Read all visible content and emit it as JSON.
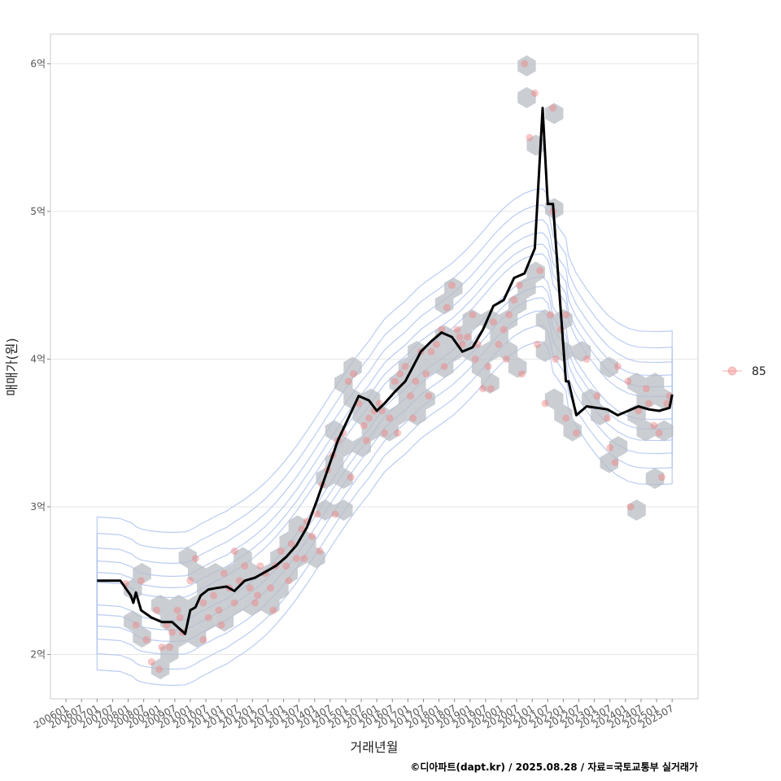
{
  "chart_data": {
    "type": "scatter",
    "xlabel": "거래년월",
    "ylabel": "매매가(원)",
    "caption": "©디아파트(dapt.kr) / 2025.08.28 / 자료=국토교통부 실거래가",
    "xlim": [
      "2005-07",
      "2026-05"
    ],
    "ylim": [
      1.7,
      6.2
    ],
    "y_ticks": [
      {
        "value": 2,
        "label": "2억"
      },
      {
        "value": 3,
        "label": "3억"
      },
      {
        "value": 4,
        "label": "4억"
      },
      {
        "value": 5,
        "label": "5억"
      },
      {
        "value": 6,
        "label": "6억"
      }
    ],
    "x_ticks": [
      "200601",
      "200607",
      "200701",
      "200707",
      "200801",
      "200807",
      "200901",
      "200907",
      "201001",
      "201007",
      "201101",
      "201107",
      "201201",
      "201207",
      "201301",
      "201307",
      "201401",
      "201407",
      "201501",
      "201507",
      "201601",
      "201607",
      "201701",
      "201707",
      "201801",
      "201807",
      "201901",
      "201907",
      "202001",
      "202007",
      "202101",
      "202107",
      "202201",
      "202207",
      "202301",
      "202307",
      "202401",
      "202407",
      "202501",
      "202507"
    ],
    "legend": {
      "position": "right",
      "entries": [
        "85"
      ]
    },
    "colors": {
      "points": "#f08080",
      "trend": "#000000",
      "contour": "#aabfef",
      "hexbin": "#b8bec4",
      "grid": "#e6e6e6"
    },
    "series": [
      {
        "name": "85",
        "kind": "points",
        "x": [
          "2007-12",
          "2008-06",
          "2008-04",
          "2008-08",
          "2008-10",
          "2008-12",
          "2009-02",
          "2009-04",
          "2009-06",
          "2009-08",
          "2009-10",
          "2009-01",
          "2009-05",
          "2009-09",
          "2010-01",
          "2010-03",
          "2010-06",
          "2010-08",
          "2010-10",
          "2010-12",
          "2011-02",
          "2011-04",
          "2011-06",
          "2011-08",
          "2011-10",
          "2011-12",
          "2012-02",
          "2012-04",
          "2012-06",
          "2012-08",
          "2012-10",
          "2012-12",
          "2013-02",
          "2013-04",
          "2013-06",
          "2013-08",
          "2013-10",
          "2013-12",
          "2014-02",
          "2014-04",
          "2014-06",
          "2014-08",
          "2014-10",
          "2014-12",
          "2015-02",
          "2015-04",
          "2015-06",
          "2015-08",
          "2015-10",
          "2015-12",
          "2016-02",
          "2016-04",
          "2016-06",
          "2016-08",
          "2016-10",
          "2016-12",
          "2017-02",
          "2017-04",
          "2017-06",
          "2017-08",
          "2017-10",
          "2017-12",
          "2018-02",
          "2018-04",
          "2018-06",
          "2018-08",
          "2018-10",
          "2018-12",
          "2019-02",
          "2019-04",
          "2019-06",
          "2019-08",
          "2019-10",
          "2019-12",
          "2020-02",
          "2020-04",
          "2020-06",
          "2020-08",
          "2020-10",
          "2020-12",
          "2021-02",
          "2021-04",
          "2021-06",
          "2021-08",
          "2021-10",
          "2021-12",
          "2022-02",
          "2022-06",
          "2022-10",
          "2023-02",
          "2023-06",
          "2023-10",
          "2024-02",
          "2024-06",
          "2024-10",
          "2025-02",
          "2025-06",
          "2021-09",
          "2021-09",
          "2022-02",
          "2010-06",
          "2011-01",
          "2011-06",
          "2012-03",
          "2012-09",
          "2013-03",
          "2013-09",
          "2014-03",
          "2014-09",
          "2015-03",
          "2015-09",
          "2016-03",
          "2016-09",
          "2017-03",
          "2017-09",
          "2018-03",
          "2018-09",
          "2019-03",
          "2019-09",
          "2020-03",
          "2020-09",
          "2021-03",
          "2023-09",
          "2024-03",
          "2024-09",
          "2025-03",
          "2023-07",
          "2024-12",
          "2025-05"
        ],
        "y": [
          2.48,
          2.5,
          2.2,
          2.1,
          1.95,
          2.3,
          2.05,
          2.2,
          2.15,
          2.3,
          2.15,
          1.9,
          2.05,
          2.25,
          2.5,
          2.65,
          2.35,
          2.25,
          2.4,
          2.3,
          2.55,
          2.45,
          2.7,
          2.5,
          2.6,
          2.45,
          2.35,
          2.6,
          2.55,
          2.45,
          2.6,
          2.7,
          2.6,
          2.75,
          2.65,
          2.85,
          2.9,
          2.8,
          2.95,
          3.15,
          3.25,
          3.35,
          3.45,
          3.5,
          3.85,
          3.9,
          3.7,
          3.55,
          3.6,
          3.65,
          3.7,
          3.5,
          3.6,
          3.85,
          3.9,
          3.95,
          3.75,
          3.85,
          4.05,
          3.9,
          4.05,
          4.1,
          4.2,
          4.35,
          4.5,
          4.2,
          4.1,
          4.15,
          4.3,
          4.1,
          3.8,
          3.95,
          4.25,
          4.1,
          4.2,
          4.3,
          4.4,
          4.5,
          6.0,
          5.5,
          5.8,
          4.6,
          3.7,
          4.3,
          4.0,
          4.2,
          3.6,
          3.5,
          4.0,
          3.75,
          3.6,
          3.95,
          3.85,
          3.65,
          3.7,
          3.5,
          3.75,
          5.7,
          5.0,
          4.3,
          2.1,
          2.2,
          2.35,
          2.4,
          2.3,
          2.5,
          2.65,
          2.7,
          2.95,
          3.2,
          3.45,
          3.65,
          3.5,
          3.6,
          3.75,
          3.95,
          4.15,
          4.0,
          3.8,
          4.0,
          3.9,
          4.1,
          3.3,
          3.0,
          3.8,
          3.2,
          3.4,
          3.55,
          3.7
        ]
      },
      {
        "name": "trend",
        "kind": "line",
        "x": [
          "2007-01",
          "2007-10",
          "2007-12",
          "2008-02",
          "2008-03",
          "2008-04",
          "2008-06",
          "2008-10",
          "2009-02",
          "2009-06",
          "2009-11",
          "2010-01",
          "2010-03",
          "2010-05",
          "2010-08",
          "2010-11",
          "2011-03",
          "2011-06",
          "2011-10",
          "2012-02",
          "2012-06",
          "2012-10",
          "2013-02",
          "2013-06",
          "2013-10",
          "2014-02",
          "2014-06",
          "2014-10",
          "2015-02",
          "2015-06",
          "2015-10",
          "2016-01",
          "2016-04",
          "2016-08",
          "2016-12",
          "2017-03",
          "2017-06",
          "2017-10",
          "2018-02",
          "2018-06",
          "2018-10",
          "2019-02",
          "2019-06",
          "2019-10",
          "2020-02",
          "2020-06",
          "2020-10",
          "2021-02",
          "2021-05",
          "2021-07",
          "2021-08",
          "2021-09",
          "2022-02",
          "2022-03",
          "2022-06",
          "2022-10",
          "2023-02",
          "2023-06",
          "2023-10",
          "2024-02",
          "2024-06",
          "2024-10",
          "2025-02",
          "2025-06",
          "2025-07"
        ],
        "y": [
          2.5,
          2.5,
          2.45,
          2.4,
          2.35,
          2.42,
          2.3,
          2.25,
          2.22,
          2.22,
          2.14,
          2.3,
          2.32,
          2.4,
          2.44,
          2.45,
          2.46,
          2.43,
          2.5,
          2.52,
          2.56,
          2.6,
          2.66,
          2.74,
          2.86,
          3.05,
          3.25,
          3.45,
          3.6,
          3.75,
          3.72,
          3.65,
          3.7,
          3.78,
          3.85,
          3.95,
          4.05,
          4.12,
          4.18,
          4.15,
          4.05,
          4.08,
          4.2,
          4.36,
          4.4,
          4.55,
          4.58,
          4.75,
          5.7,
          5.05,
          5.05,
          5.05,
          3.85,
          3.85,
          3.62,
          3.68,
          3.67,
          3.66,
          3.62,
          3.65,
          3.68,
          3.66,
          3.65,
          3.67,
          3.76
        ]
      }
    ]
  }
}
